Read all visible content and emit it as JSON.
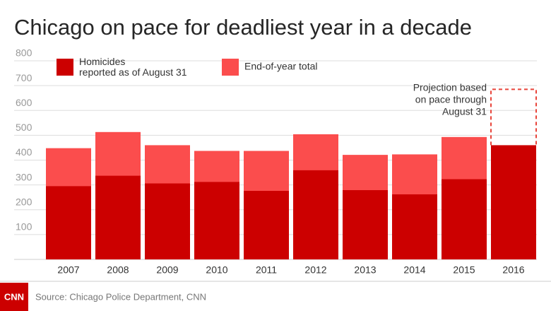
{
  "chart_data": {
    "type": "bar",
    "title": "Chicago on pace for deadliest year in a decade",
    "categories": [
      "2007",
      "2008",
      "2009",
      "2010",
      "2011",
      "2012",
      "2013",
      "2014",
      "2015",
      "2016"
    ],
    "series": [
      {
        "name": "End-of-year total",
        "color": "#fb4d4d",
        "values": [
          448,
          513,
          460,
          437,
          437,
          504,
          421,
          423,
          493,
          null
        ]
      },
      {
        "name": "Homicides reported as of August 31",
        "color": "#cc0000",
        "values": [
          295,
          337,
          306,
          312,
          276,
          359,
          279,
          262,
          323,
          460
        ]
      }
    ],
    "projection": {
      "text": "Projection based on pace through August 31",
      "category": "2016",
      "value": 685,
      "color": "#e8443a"
    },
    "ylim": [
      0,
      800
    ],
    "yticks": [
      100,
      200,
      300,
      400,
      500,
      600,
      700,
      800
    ],
    "grid": true,
    "source": "Source: Chicago Police Department, CNN",
    "logo": "CNN"
  }
}
